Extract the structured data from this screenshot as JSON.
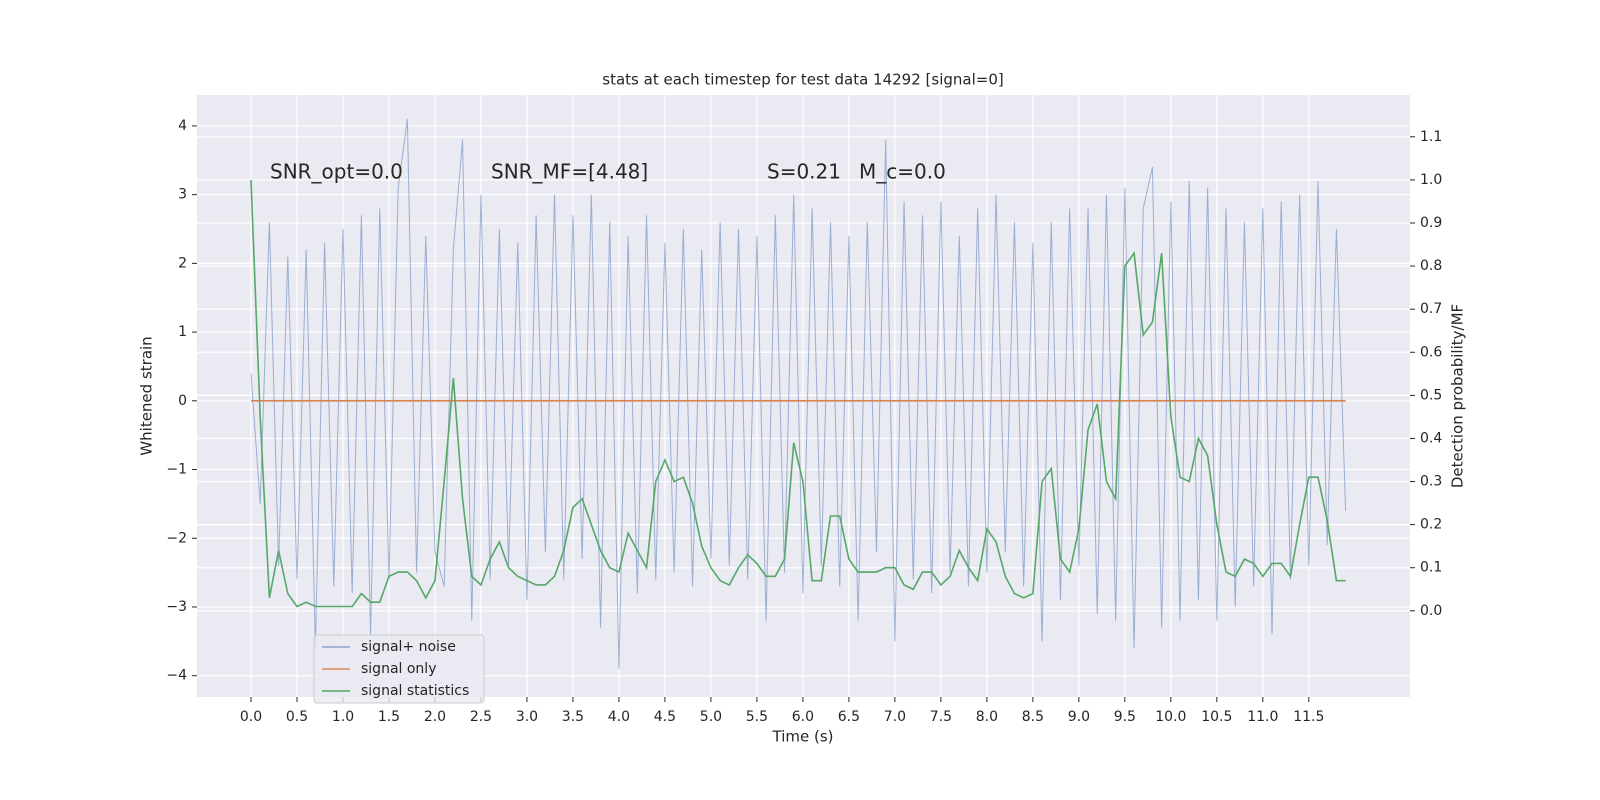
{
  "chart_data": {
    "type": "line",
    "title": "stats at each timestep for test data 14292 [signal=0]",
    "x_label": "Time (s)",
    "y_label": "Whitened strain",
    "y2_label": "Detection probability/MF",
    "annotations": [
      "SNR_opt=0.0",
      "SNR_MF=[4.48]",
      "S=0.21",
      "M_c=0.0"
    ],
    "x": [
      0,
      0.1,
      0.2,
      0.3,
      0.4,
      0.5,
      0.6,
      0.7,
      0.8,
      0.9,
      1,
      1.1,
      1.2,
      1.3,
      1.4,
      1.5,
      1.6,
      1.7,
      1.8,
      1.9,
      2,
      2.1,
      2.2,
      2.3,
      2.4,
      2.5,
      2.6,
      2.7,
      2.8,
      2.9,
      3,
      3.1,
      3.2,
      3.3,
      3.4,
      3.5,
      3.6,
      3.7,
      3.8,
      3.9,
      4,
      4.1,
      4.2,
      4.3,
      4.4,
      4.5,
      4.6,
      4.7,
      4.8,
      4.9,
      5,
      5.1,
      5.2,
      5.3,
      5.4,
      5.5,
      5.6,
      5.7,
      5.8,
      5.9,
      6,
      6.1,
      6.2,
      6.3,
      6.4,
      6.5,
      6.6,
      6.7,
      6.8,
      6.9,
      7,
      7.1,
      7.2,
      7.3,
      7.4,
      7.5,
      7.6,
      7.7,
      7.8,
      7.9,
      8,
      8.1,
      8.2,
      8.3,
      8.4,
      8.5,
      8.6,
      8.7,
      8.8,
      8.9,
      9,
      9.1,
      9.2,
      9.3,
      9.4,
      9.5,
      9.6,
      9.7,
      9.8,
      9.9,
      10,
      10.1,
      10.2,
      10.3,
      10.4,
      10.5,
      10.6,
      10.7,
      10.8,
      10.9,
      11,
      11.1,
      11.2,
      11.3,
      11.4,
      11.5,
      11.6,
      11.7,
      11.8,
      11.9
    ],
    "series": [
      {
        "name": "signal+ noise",
        "color": "#4c72b0",
        "values": [
          0.4,
          -1.5,
          2.6,
          -2.4,
          2.1,
          -2.6,
          2.2,
          -3.6,
          2.3,
          -2.7,
          2.5,
          -2.8,
          2.7,
          -3.4,
          2.8,
          -2.6,
          3.1,
          4.1,
          -2.5,
          2.4,
          -2.2,
          -2.7,
          2.2,
          3.8,
          -3.2,
          3.0,
          -2.6,
          2.5,
          -2.4,
          2.3,
          -2.9,
          2.7,
          -2.2,
          3.0,
          -2.6,
          2.7,
          -2.3,
          3.0,
          -3.3,
          2.6,
          -3.9,
          2.4,
          -2.8,
          2.7,
          -2.6,
          2.3,
          -2.5,
          2.5,
          -2.7,
          2.2,
          -2.3,
          2.6,
          -2.4,
          2.5,
          -2.6,
          2.4,
          -3.2,
          2.7,
          -2.5,
          3.0,
          -2.8,
          2.8,
          -2.4,
          2.6,
          -2.7,
          2.4,
          -3.2,
          2.6,
          -2.2,
          3.8,
          -3.5,
          2.9,
          -2.6,
          2.7,
          -2.8,
          2.9,
          -2.5,
          2.4,
          -2.7,
          2.8,
          -2.5,
          3.0,
          -2.2,
          2.6,
          -2.7,
          2.3,
          -3.5,
          2.6,
          -2.9,
          2.8,
          -2.4,
          2.8,
          -3.1,
          3.0,
          -3.2,
          3.1,
          -3.6,
          2.8,
          3.4,
          -3.3,
          2.9,
          -3.2,
          3.2,
          -2.9,
          3.1,
          -3.2,
          2.8,
          -3.0,
          2.6,
          -2.7,
          2.8,
          -3.4,
          2.9,
          -2.6,
          3.0,
          -2.4,
          3.2,
          -2.1,
          2.5,
          -1.6
        ]
      },
      {
        "name": "signal only",
        "color": "#dd8452",
        "values": [
          0,
          0,
          0,
          0,
          0,
          0,
          0,
          0,
          0,
          0,
          0,
          0,
          0,
          0,
          0,
          0,
          0,
          0,
          0,
          0,
          0,
          0,
          0,
          0,
          0,
          0,
          0,
          0,
          0,
          0,
          0,
          0,
          0,
          0,
          0,
          0,
          0,
          0,
          0,
          0,
          0,
          0,
          0,
          0,
          0,
          0,
          0,
          0,
          0,
          0,
          0,
          0,
          0,
          0,
          0,
          0,
          0,
          0,
          0,
          0,
          0,
          0,
          0,
          0,
          0,
          0,
          0,
          0,
          0,
          0,
          0,
          0,
          0,
          0,
          0,
          0,
          0,
          0,
          0,
          0,
          0,
          0,
          0,
          0,
          0,
          0,
          0,
          0,
          0,
          0,
          0,
          0,
          0,
          0,
          0,
          0,
          0,
          0,
          0,
          0,
          0,
          0,
          0,
          0,
          0,
          0,
          0,
          0,
          0,
          0,
          0,
          0,
          0,
          0,
          0,
          0,
          0,
          0,
          0,
          0
        ]
      },
      {
        "name": "signal statistics",
        "color": "#55a868",
        "axis": "y2",
        "values": [
          1.0,
          0.45,
          0.03,
          0.14,
          0.04,
          0.01,
          0.02,
          0.01,
          0.01,
          0.01,
          0.01,
          0.01,
          0.04,
          0.02,
          0.02,
          0.08,
          0.09,
          0.09,
          0.07,
          0.03,
          0.07,
          0.3,
          0.54,
          0.26,
          0.08,
          0.06,
          0.12,
          0.16,
          0.1,
          0.08,
          0.07,
          0.06,
          0.06,
          0.08,
          0.14,
          0.24,
          0.26,
          0.2,
          0.14,
          0.1,
          0.09,
          0.18,
          0.14,
          0.1,
          0.3,
          0.35,
          0.3,
          0.31,
          0.25,
          0.15,
          0.1,
          0.07,
          0.06,
          0.1,
          0.13,
          0.11,
          0.08,
          0.08,
          0.12,
          0.39,
          0.3,
          0.07,
          0.07,
          0.22,
          0.22,
          0.12,
          0.09,
          0.09,
          0.09,
          0.1,
          0.1,
          0.06,
          0.05,
          0.09,
          0.09,
          0.06,
          0.08,
          0.14,
          0.1,
          0.07,
          0.19,
          0.16,
          0.08,
          0.04,
          0.03,
          0.04,
          0.3,
          0.33,
          0.12,
          0.09,
          0.19,
          0.42,
          0.48,
          0.3,
          0.26,
          0.8,
          0.83,
          0.64,
          0.67,
          0.83,
          0.45,
          0.31,
          0.3,
          0.4,
          0.36,
          0.2,
          0.09,
          0.08,
          0.12,
          0.11,
          0.08,
          0.11,
          0.11,
          0.08,
          0.2,
          0.31,
          0.31,
          0.21,
          0.07,
          0.07
        ]
      }
    ],
    "xlim": [
      -0.587,
      12.6
    ],
    "xticks": [
      {
        "value": 0,
        "label": "0.0"
      },
      0.5,
      {
        "value": 1,
        "label": "1.0"
      },
      1.5,
      {
        "value": 2,
        "label": "2.0"
      },
      2.5,
      {
        "value": 3,
        "label": "3.0"
      },
      3.5,
      {
        "value": 4,
        "label": "4.0"
      },
      4.5,
      {
        "value": 5,
        "label": "5.0"
      },
      5.5,
      {
        "value": 6,
        "label": "6.0"
      },
      6.5,
      {
        "value": 7,
        "label": "7.0"
      },
      7.5,
      {
        "value": 8,
        "label": "8.0"
      },
      8.5,
      {
        "value": 9,
        "label": "9.0"
      },
      9.5,
      {
        "value": 10,
        "label": "10.0"
      },
      10.5,
      {
        "value": 11,
        "label": "11.0"
      },
      11.5
    ],
    "ylim": [
      -4.31,
      4.45
    ],
    "yticks": [
      {
        "value": -4,
        "label": "−4"
      },
      {
        "value": -3,
        "label": "−3"
      },
      {
        "value": -2,
        "label": "−2"
      },
      {
        "value": -1,
        "label": "−1"
      },
      0,
      1,
      2,
      3,
      4
    ],
    "y2lim": [
      -0.2,
      1.197
    ],
    "y2ticks": [
      {
        "value": 0,
        "label": "0.0"
      },
      0.1,
      0.2,
      0.3,
      0.4,
      0.5,
      0.6,
      0.7,
      0.8,
      0.9,
      {
        "value": 1,
        "label": "1.0"
      },
      1.1
    ],
    "grid": true,
    "legend": "lower left"
  }
}
